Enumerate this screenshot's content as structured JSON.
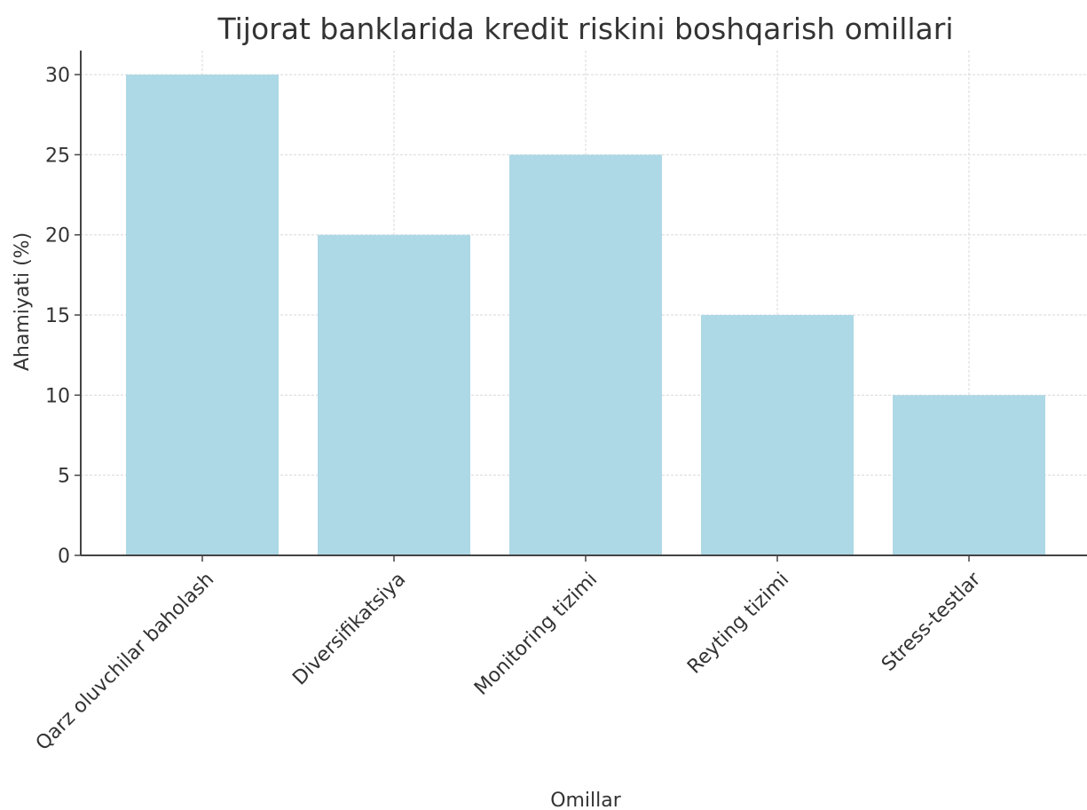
{
  "chart_data": {
    "type": "bar",
    "title": "Tijorat banklarida kredit riskini boshqarish omillari",
    "xlabel": "Omillar",
    "ylabel": "Ahamiyati (%)",
    "categories": [
      "Qarz oluvchilar baholash",
      "Diversifikatsiya",
      "Monitoring tizimi",
      "Reyting tizimi",
      "Stress-testlar"
    ],
    "values": [
      30,
      20,
      25,
      15,
      10
    ],
    "ylim": [
      0,
      31.5
    ],
    "yticks": [
      0,
      5,
      10,
      15,
      20,
      25,
      30
    ],
    "grid": true,
    "bar_color": "#add8e6"
  }
}
